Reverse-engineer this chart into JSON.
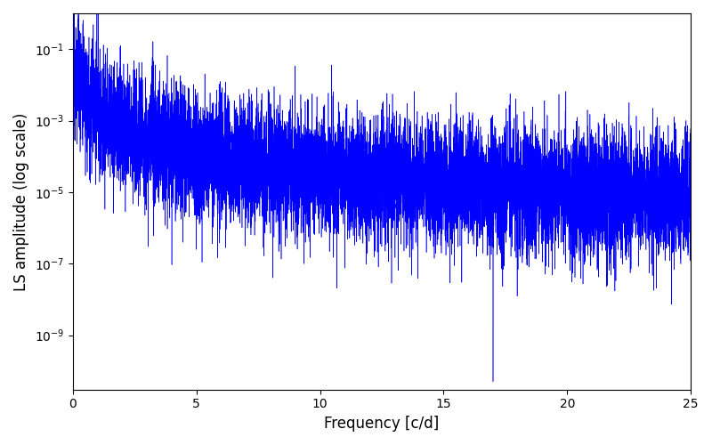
{
  "xlabel": "Frequency [c/d]",
  "ylabel": "LS amplitude (log scale)",
  "line_color": "#0000ff",
  "line_width": 0.4,
  "xlim": [
    0,
    25
  ],
  "ylim": [
    3e-11,
    1.0
  ],
  "freq_min": 0.0,
  "freq_max": 25.0,
  "n_points": 10000,
  "seed": 12345,
  "figsize": [
    8.0,
    5.0
  ],
  "dpi": 100
}
